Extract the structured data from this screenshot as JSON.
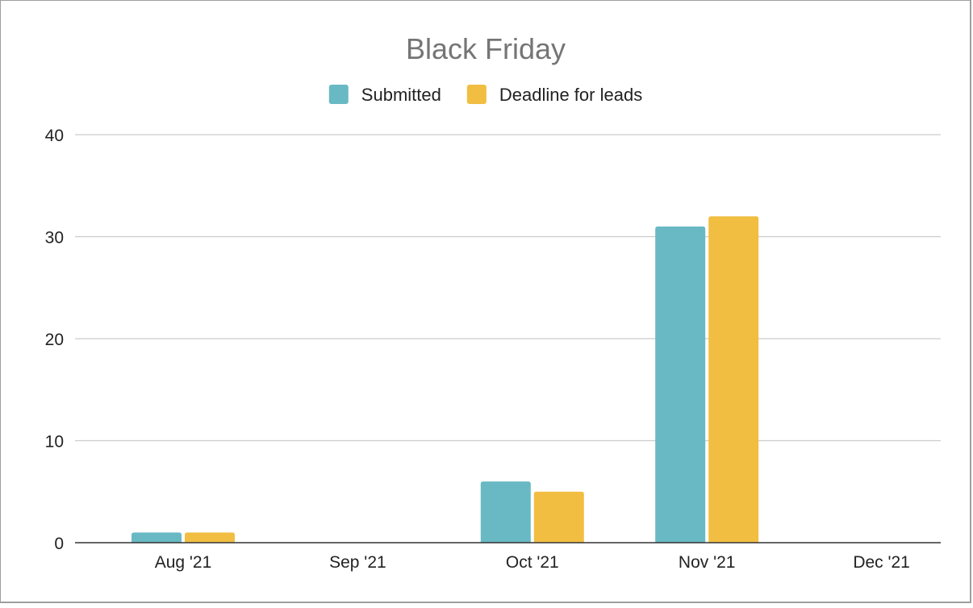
{
  "chart_data": {
    "type": "bar",
    "title": "Black Friday",
    "xlabel": "",
    "ylabel": "",
    "categories": [
      "Aug '21",
      "Sep '21",
      "Oct '21",
      "Nov '21",
      "Dec '21"
    ],
    "series": [
      {
        "name": "Submitted",
        "color": "#68b9c3",
        "values": [
          1,
          0,
          6,
          31,
          0
        ]
      },
      {
        "name": "Deadline for leads",
        "color": "#f1be42",
        "values": [
          1,
          0,
          5,
          32,
          0
        ]
      }
    ],
    "ylim": [
      0,
      40
    ],
    "yticks": [
      0,
      10,
      20,
      30,
      40
    ],
    "grid": true,
    "legend_position": "top"
  }
}
